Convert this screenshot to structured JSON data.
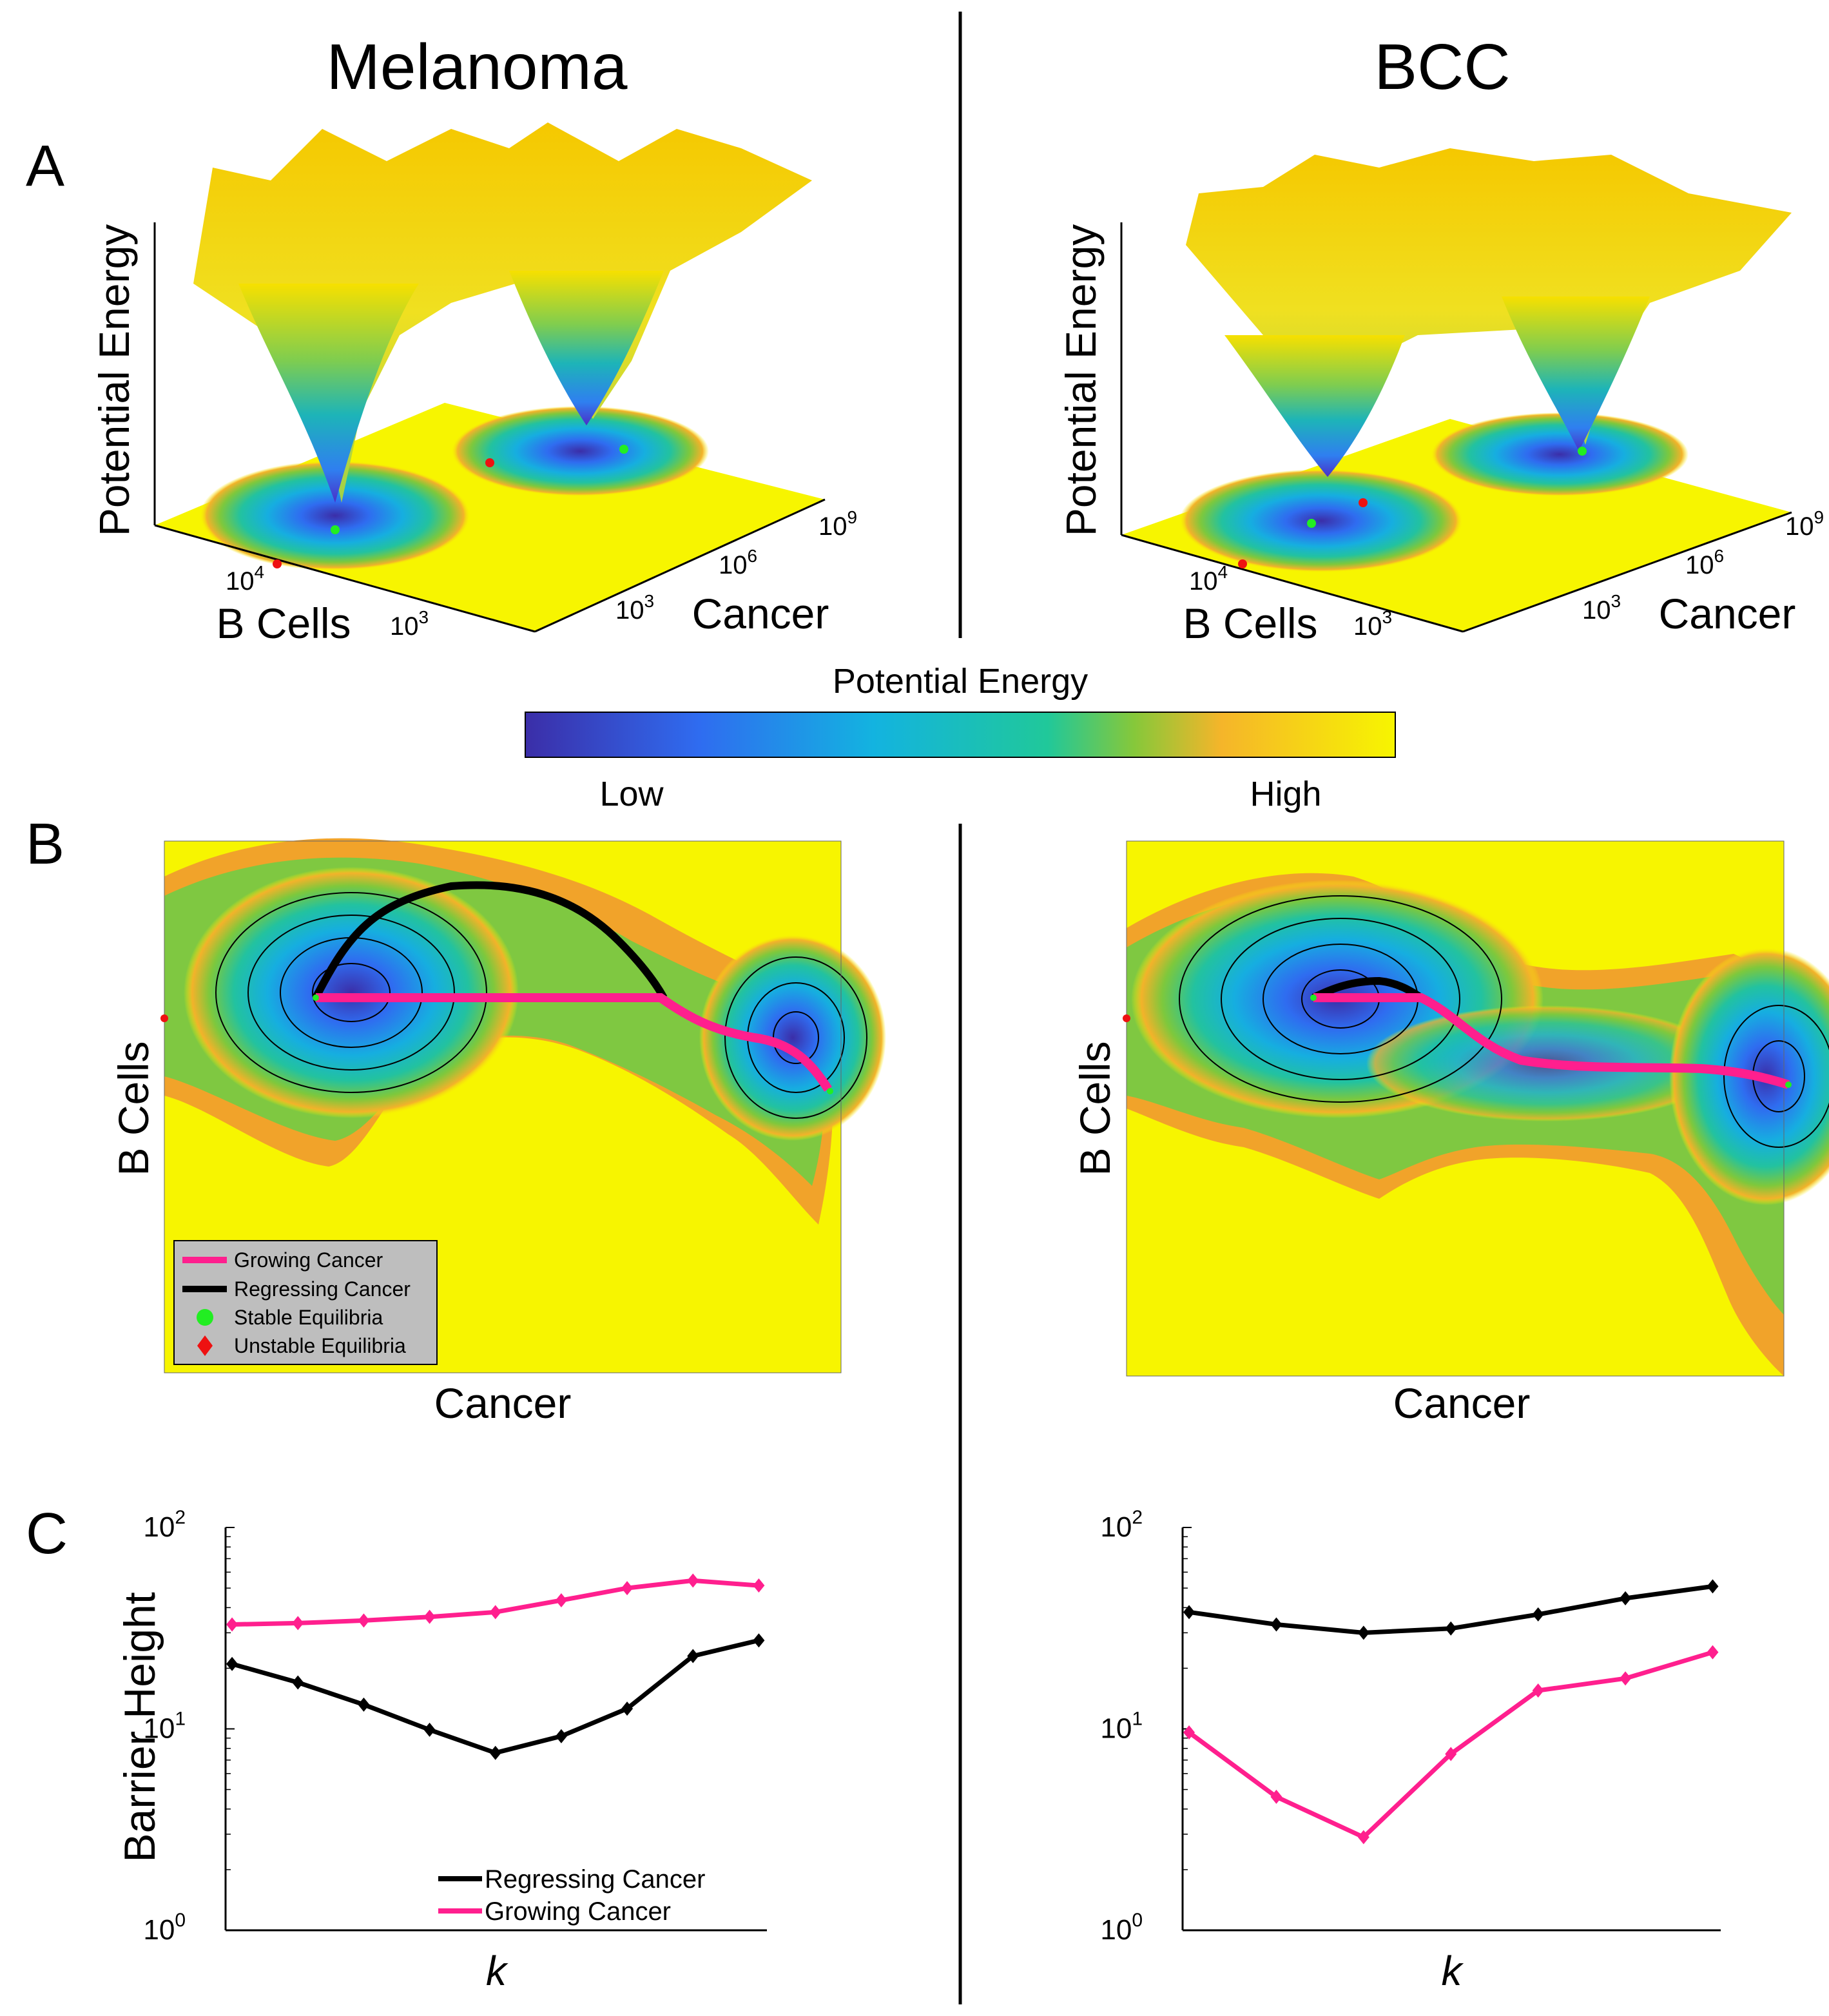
{
  "titles": {
    "left": "Melanoma",
    "right": "BCC"
  },
  "panel_labels": {
    "a": "A",
    "b": "B",
    "c": "C"
  },
  "colors": {
    "low": "#3b2ea8",
    "mid": "#13b3b8",
    "high": "#f7f500",
    "growing": "#ff1f8e",
    "regressing": "#000000",
    "stable": "#22ee22",
    "unstable": "#ee1111"
  },
  "panel_a": {
    "zlabel": "Potential Energy",
    "ylabel": "B Cells",
    "xlabel": "Cancer",
    "b_cells_ticks": [
      "10",
      "10"
    ],
    "b_cells_exps": [
      "4",
      "3"
    ],
    "cancer_ticks": [
      "10",
      "10",
      "10"
    ],
    "cancer_exps": [
      "3",
      "6",
      "9"
    ]
  },
  "colorbar": {
    "title": "Potential Energy",
    "low": "Low",
    "high": "High"
  },
  "panel_b": {
    "xlabel": "Cancer",
    "ylabel": "B Cells",
    "legend": [
      "Growing Cancer",
      "Regressing Cancer",
      "Stable Equilibria",
      "Unstable Equilibria"
    ]
  },
  "chart_data": [
    {
      "panel": "C",
      "subplot": "Melanoma",
      "type": "line",
      "title": "",
      "xlabel": "k",
      "ylabel": "Barrier Height",
      "yscale": "log",
      "ylim": [
        1,
        100
      ],
      "yticks": [
        "10",
        "10",
        "10"
      ],
      "ytick_exps": [
        "0",
        "1",
        "2"
      ],
      "x": [
        1,
        2,
        3,
        4,
        5,
        6,
        7,
        8,
        9
      ],
      "series": [
        {
          "name": "Regressing Cancer",
          "color": "#000000",
          "values": [
            21,
            17,
            13.2,
            9.9,
            7.6,
            9.2,
            12.6,
            23,
            27.5
          ]
        },
        {
          "name": "Growing Cancer",
          "color": "#ff1f8e",
          "values": [
            33,
            33.5,
            34.5,
            36,
            38,
            43.5,
            50,
            54.5,
            51.5
          ]
        }
      ],
      "legend": [
        "Regressing Cancer",
        "Growing Cancer"
      ],
      "legend_position": "bottom-right"
    },
    {
      "panel": "C",
      "subplot": "BCC",
      "type": "line",
      "title": "",
      "xlabel": "k",
      "ylabel": "",
      "yscale": "log",
      "ylim": [
        1,
        100
      ],
      "yticks": [
        "10",
        "10",
        "10"
      ],
      "ytick_exps": [
        "0",
        "1",
        "2"
      ],
      "x": [
        1,
        2,
        3,
        4,
        5,
        6,
        7
      ],
      "series": [
        {
          "name": "Regressing Cancer",
          "color": "#000000",
          "values": [
            38,
            33,
            30,
            31.5,
            37,
            44.5,
            51
          ]
        },
        {
          "name": "Growing Cancer",
          "color": "#ff1f8e",
          "values": [
            9.6,
            4.6,
            2.9,
            7.5,
            15.5,
            17.8,
            24
          ]
        }
      ]
    }
  ]
}
